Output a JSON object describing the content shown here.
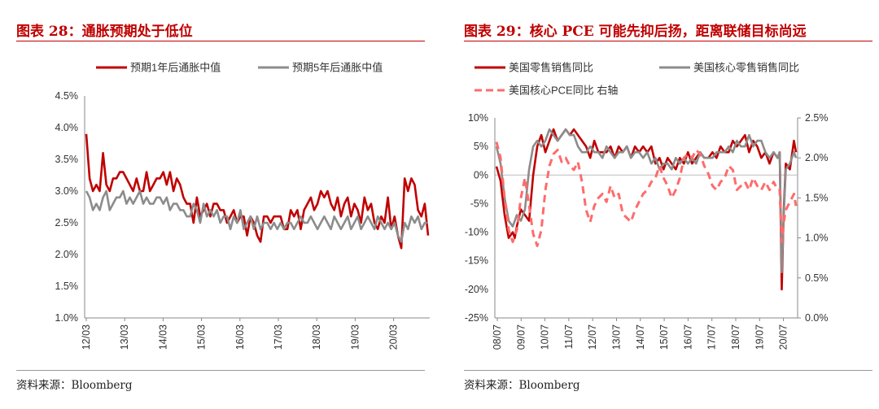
{
  "chart_data": [
    {
      "type": "line",
      "figure_title": "图表 28：通胀预期处于低位",
      "source": "资料来源：Bloomberg",
      "legend": [
        {
          "name": "预期1年后通胀中值",
          "color": "#c00000",
          "style": "solid"
        },
        {
          "name": "预期5年后通胀中值",
          "color": "#8c8c8c",
          "style": "solid"
        }
      ],
      "ylim": [
        1.0,
        4.5
      ],
      "yticks": [
        "1.0%",
        "1.5%",
        "2.0%",
        "2.5%",
        "3.0%",
        "3.5%",
        "4.0%",
        "4.5%"
      ],
      "xticks": [
        "12/03",
        "13/03",
        "14/03",
        "15/03",
        "16/03",
        "17/03",
        "18/03",
        "19/03",
        "20/03"
      ],
      "x_start": "2012-01",
      "series": [
        {
          "name": "预期1年后通胀中值",
          "color": "#c00000",
          "values": [
            3.9,
            3.2,
            3.0,
            3.1,
            3.0,
            3.6,
            3.1,
            3.0,
            3.2,
            3.2,
            3.3,
            3.3,
            3.2,
            3.1,
            3.0,
            3.2,
            3.0,
            3.0,
            3.3,
            3.0,
            3.1,
            3.2,
            3.2,
            3.3,
            3.1,
            3.3,
            3.0,
            3.2,
            3.1,
            2.9,
            2.8,
            2.8,
            2.5,
            2.9,
            2.6,
            2.7,
            2.8,
            2.6,
            2.8,
            2.8,
            2.7,
            2.7,
            2.5,
            2.6,
            2.7,
            2.5,
            2.6,
            2.6,
            2.3,
            2.6,
            2.5,
            2.3,
            2.2,
            2.6,
            2.6,
            2.5,
            2.6,
            2.6,
            2.6,
            2.4,
            2.4,
            2.7,
            2.6,
            2.7,
            2.4,
            2.7,
            2.8,
            2.9,
            2.7,
            2.8,
            3.0,
            2.9,
            3.0,
            2.8,
            2.7,
            2.9,
            2.6,
            2.8,
            2.9,
            2.6,
            2.8,
            2.7,
            2.5,
            2.9,
            2.7,
            2.8,
            2.5,
            2.4,
            2.6,
            2.5,
            2.9,
            2.4,
            2.6,
            2.3,
            2.1,
            3.2,
            3.0,
            3.2,
            3.1,
            2.7,
            2.6,
            2.8,
            2.3
          ]
        },
        {
          "name": "预期5年后通胀中值",
          "color": "#8c8c8c",
          "values": [
            3.0,
            2.9,
            2.7,
            2.8,
            2.7,
            2.9,
            3.0,
            2.7,
            2.8,
            2.9,
            2.9,
            3.0,
            2.8,
            2.9,
            2.8,
            2.9,
            3.0,
            2.8,
            2.9,
            2.8,
            2.8,
            2.9,
            2.9,
            2.8,
            2.9,
            2.7,
            2.8,
            2.8,
            2.7,
            2.7,
            2.6,
            2.6,
            2.8,
            2.7,
            2.5,
            2.8,
            2.6,
            2.7,
            2.6,
            2.7,
            2.5,
            2.6,
            2.6,
            2.4,
            2.6,
            2.5,
            2.7,
            2.4,
            2.5,
            2.6,
            2.4,
            2.6,
            2.4,
            2.5,
            2.5,
            2.4,
            2.5,
            2.4,
            2.5,
            2.4,
            2.5,
            2.5,
            2.4,
            2.5,
            2.6,
            2.5,
            2.5,
            2.6,
            2.5,
            2.4,
            2.5,
            2.6,
            2.5,
            2.4,
            2.6,
            2.5,
            2.4,
            2.5,
            2.6,
            2.4,
            2.5,
            2.6,
            2.4,
            2.5,
            2.6,
            2.5,
            2.4,
            2.6,
            2.5,
            2.4,
            2.5,
            2.4,
            2.5,
            2.3,
            2.2,
            2.5,
            2.4,
            2.6,
            2.5,
            2.6,
            2.4,
            2.5,
            2.5
          ]
        }
      ]
    },
    {
      "type": "line",
      "figure_title": "图表 29：核心 PCE 可能先抑后扬，距离联储目标尚远",
      "source": "资料来源：Bloomberg",
      "legend": [
        {
          "name": "美国零售销售同比",
          "color": "#c00000",
          "style": "solid"
        },
        {
          "name": "美国核心零售销售同比",
          "color": "#8c8c8c",
          "style": "solid"
        },
        {
          "name": "美国核心PCE同比 右轴",
          "color": "#ff6b6b",
          "style": "dashed"
        }
      ],
      "ylim": [
        -25,
        10
      ],
      "yticks": [
        "-25%",
        "-20%",
        "-15%",
        "-10%",
        "-5%",
        "0%",
        "5%",
        "10%"
      ],
      "y2lim": [
        0.0,
        2.5
      ],
      "y2ticks": [
        "0.0%",
        "0.5%",
        "1.0%",
        "1.5%",
        "2.0%",
        "2.5%"
      ],
      "xticks": [
        "08/07",
        "09/07",
        "10/07",
        "11/07",
        "12/07",
        "13/07",
        "14/07",
        "15/07",
        "16/07",
        "17/07",
        "18/07",
        "19/07",
        "20/07"
      ],
      "x_start": "2008-07",
      "series": [
        {
          "name": "美国零售销售同比",
          "color": "#c00000",
          "axis": "left",
          "x": [
            0,
            2,
            4,
            6,
            8,
            9,
            10,
            12,
            14,
            16,
            18,
            20,
            22,
            24,
            26,
            28,
            30,
            32,
            34,
            36,
            38,
            40,
            42,
            44,
            46,
            48,
            50,
            52,
            54,
            56,
            58,
            60,
            62,
            64,
            66,
            68,
            70,
            72,
            74,
            76,
            78,
            80,
            82,
            84,
            86,
            88,
            90,
            92,
            94,
            96,
            98,
            100,
            102,
            104,
            106,
            108,
            110,
            112,
            114,
            116,
            118,
            120,
            122,
            124,
            126,
            128,
            130,
            132,
            134,
            136,
            138,
            139,
            140,
            141,
            142,
            144,
            146,
            147
          ],
          "values": [
            1.5,
            -1,
            -7,
            -11,
            -10,
            -11,
            -9,
            -6,
            -7,
            -8,
            0,
            5,
            7,
            4,
            6,
            8,
            6,
            7,
            8,
            7,
            8,
            7,
            6,
            5,
            3,
            6,
            4,
            4,
            4,
            5,
            3,
            5,
            4,
            5,
            3,
            5,
            4,
            5,
            4,
            5,
            2,
            3,
            1,
            3,
            2,
            1,
            3,
            2,
            4,
            2,
            3,
            4,
            3,
            3,
            4,
            3,
            5,
            4,
            4,
            6,
            5,
            6,
            7,
            4,
            6,
            5,
            3,
            4,
            2,
            4,
            3,
            4,
            -20,
            -6,
            2,
            1,
            6,
            4
          ]
        },
        {
          "name": "美国核心零售销售同比",
          "color": "#8c8c8c",
          "axis": "left",
          "x": [
            0,
            2,
            4,
            6,
            8,
            10,
            12,
            14,
            16,
            18,
            20,
            22,
            24,
            26,
            28,
            30,
            32,
            34,
            36,
            38,
            40,
            42,
            44,
            46,
            48,
            50,
            52,
            54,
            56,
            58,
            60,
            62,
            64,
            66,
            68,
            70,
            72,
            74,
            76,
            78,
            80,
            82,
            84,
            86,
            88,
            90,
            92,
            94,
            96,
            98,
            100,
            102,
            104,
            106,
            108,
            110,
            112,
            114,
            116,
            118,
            120,
            122,
            124,
            126,
            128,
            130,
            132,
            134,
            136,
            138,
            139,
            140,
            141,
            142,
            144,
            146,
            147
          ],
          "values": [
            5,
            2,
            -4,
            -8,
            -9,
            -7,
            -8,
            -6,
            1,
            5,
            6,
            5,
            6,
            8,
            7,
            6,
            7,
            8,
            7,
            7,
            5,
            4,
            4,
            5,
            4,
            4,
            3,
            5,
            4,
            3,
            4,
            4,
            5,
            3,
            4,
            4,
            3,
            4,
            2,
            3,
            1,
            2,
            2,
            1,
            3,
            2,
            3,
            2,
            3,
            2,
            4,
            3,
            3,
            3,
            4,
            4,
            4,
            5,
            4,
            6,
            5,
            5,
            7,
            5,
            6,
            6,
            4,
            3,
            4,
            3,
            4,
            -17,
            -7,
            1,
            2,
            4,
            3
          ]
        },
        {
          "name": "美国核心PCE同比 右轴",
          "color": "#ff6b6b",
          "axis": "right",
          "style": "dashed",
          "x": [
            0,
            2,
            4,
            6,
            8,
            10,
            12,
            14,
            16,
            18,
            20,
            22,
            24,
            26,
            28,
            30,
            32,
            34,
            36,
            38,
            40,
            42,
            44,
            46,
            48,
            50,
            52,
            54,
            56,
            58,
            60,
            62,
            64,
            66,
            68,
            70,
            72,
            74,
            76,
            78,
            80,
            82,
            84,
            86,
            88,
            90,
            92,
            94,
            96,
            98,
            100,
            102,
            104,
            106,
            108,
            110,
            112,
            114,
            116,
            118,
            120,
            122,
            124,
            126,
            128,
            130,
            132,
            134,
            136,
            138,
            139,
            140,
            141,
            142,
            144,
            146,
            147
          ],
          "values": [
            2.2,
            2.0,
            1.5,
            1.1,
            0.95,
            1.1,
            1.5,
            1.75,
            1.4,
            1.05,
            0.9,
            1.1,
            1.6,
            1.9,
            2.05,
            2.1,
            1.95,
            2.0,
            1.9,
            1.85,
            1.95,
            1.7,
            1.35,
            1.2,
            1.4,
            1.5,
            1.55,
            1.45,
            1.65,
            1.5,
            1.55,
            1.3,
            1.25,
            1.2,
            1.35,
            1.45,
            1.55,
            1.6,
            1.7,
            1.75,
            1.9,
            1.75,
            1.65,
            1.5,
            1.6,
            1.75,
            2.0,
            2.05,
            2.0,
            2.1,
            2.05,
            1.9,
            1.8,
            1.65,
            1.6,
            1.7,
            1.75,
            1.9,
            1.85,
            1.6,
            1.65,
            1.7,
            1.6,
            1.75,
            1.65,
            1.6,
            1.7,
            1.6,
            1.7,
            1.6,
            1.6,
            0.95,
            1.2,
            1.35,
            1.45,
            1.55,
            1.4
          ]
        }
      ]
    }
  ]
}
